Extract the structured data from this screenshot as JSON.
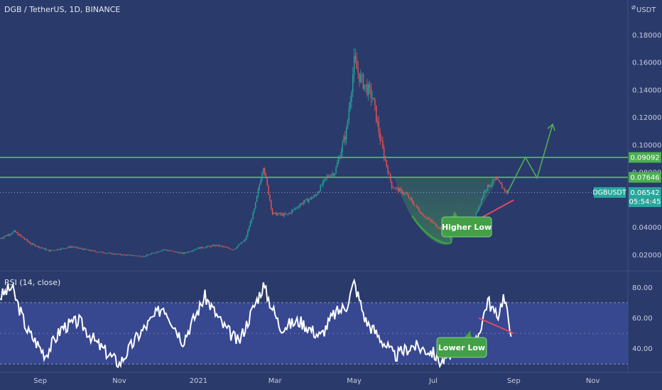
{
  "chart_data": [
    {
      "type": "candlestick",
      "title": "DGB / TetherUS, 1D, BINANCE",
      "currency": "USDT",
      "symbol": "DGBUSDT",
      "last_price": "0.06542",
      "countdown": "05:54:45",
      "y_ticks": [
        "0.18000",
        "0.16000",
        "0.14000",
        "0.12000",
        "0.10000",
        "0.08000",
        "0.06000",
        "0.04000",
        "0.02000"
      ],
      "ylim": [
        0.012,
        0.19
      ],
      "levels": [
        {
          "label": "0.09092",
          "value": 0.09092,
          "color": "#4caf50"
        },
        {
          "label": "0.07646",
          "value": 0.07646,
          "color": "#4caf50"
        }
      ],
      "x_ticks": [
        "Sep",
        "Nov",
        "2021",
        "Mar",
        "May",
        "Jul",
        "Sep",
        "Nov"
      ],
      "x_tick_dates": [
        "2020-09-01",
        "2020-11-01",
        "2021-01-01",
        "2021-03-01",
        "2021-05-01",
        "2021-07-01",
        "2021-09-01",
        "2021-11-01"
      ],
      "price_path": [
        [
          "2020-08-01",
          0.032
        ],
        [
          "2020-08-12",
          0.037
        ],
        [
          "2020-08-25",
          0.028
        ],
        [
          "2020-09-08",
          0.023
        ],
        [
          "2020-09-25",
          0.026
        ],
        [
          "2020-10-10",
          0.023
        ],
        [
          "2020-10-25",
          0.021
        ],
        [
          "2020-11-05",
          0.02
        ],
        [
          "2020-11-20",
          0.019
        ],
        [
          "2020-12-05",
          0.024
        ],
        [
          "2020-12-20",
          0.021
        ],
        [
          "2021-01-01",
          0.025
        ],
        [
          "2021-01-15",
          0.027
        ],
        [
          "2021-01-28",
          0.024
        ],
        [
          "2021-02-06",
          0.031
        ],
        [
          "2021-02-13",
          0.053
        ],
        [
          "2021-02-20",
          0.085
        ],
        [
          "2021-02-27",
          0.05
        ],
        [
          "2021-03-10",
          0.049
        ],
        [
          "2021-03-22",
          0.058
        ],
        [
          "2021-04-01",
          0.063
        ],
        [
          "2021-04-10",
          0.077
        ],
        [
          "2021-04-16",
          0.08
        ],
        [
          "2021-04-25",
          0.11
        ],
        [
          "2021-05-01",
          0.16
        ],
        [
          "2021-05-06",
          0.148
        ],
        [
          "2021-05-15",
          0.135
        ],
        [
          "2021-05-22",
          0.1
        ],
        [
          "2021-05-30",
          0.07
        ],
        [
          "2021-06-10",
          0.064
        ],
        [
          "2021-06-22",
          0.05
        ],
        [
          "2021-07-05",
          0.04
        ],
        [
          "2021-07-20",
          0.038
        ],
        [
          "2021-08-01",
          0.045
        ],
        [
          "2021-08-10",
          0.068
        ],
        [
          "2021-08-18",
          0.075
        ],
        [
          "2021-08-27",
          0.065
        ]
      ],
      "forecast": [
        [
          "2021-08-27",
          0.065
        ],
        [
          "2021-09-10",
          0.091
        ],
        [
          "2021-09-19",
          0.076
        ],
        [
          "2021-10-01",
          0.115
        ]
      ],
      "annotations": [
        "Higher Low"
      ]
    },
    {
      "type": "line",
      "title": "RSI (14, close)",
      "y_ticks": [
        "80.00",
        "60.00",
        "40.00"
      ],
      "ylim": [
        26,
        88
      ],
      "band": [
        30,
        70
      ],
      "midline": 50,
      "values_path": [
        [
          "2020-08-01",
          74
        ],
        [
          "2020-08-10",
          80
        ],
        [
          "2020-08-22",
          52
        ],
        [
          "2020-09-05",
          36
        ],
        [
          "2020-09-18",
          54
        ],
        [
          "2020-10-01",
          58
        ],
        [
          "2020-10-15",
          43
        ],
        [
          "2020-11-01",
          30
        ],
        [
          "2020-11-15",
          48
        ],
        [
          "2020-12-05",
          68
        ],
        [
          "2020-12-20",
          45
        ],
        [
          "2021-01-06",
          74
        ],
        [
          "2021-01-20",
          55
        ],
        [
          "2021-02-01",
          44
        ],
        [
          "2021-02-13",
          68
        ],
        [
          "2021-02-20",
          81
        ],
        [
          "2021-03-05",
          54
        ],
        [
          "2021-03-20",
          58
        ],
        [
          "2021-04-05",
          48
        ],
        [
          "2021-04-15",
          62
        ],
        [
          "2021-04-25",
          68
        ],
        [
          "2021-05-01",
          83
        ],
        [
          "2021-05-10",
          58
        ],
        [
          "2021-05-22",
          46
        ],
        [
          "2021-06-01",
          35
        ],
        [
          "2021-06-15",
          42
        ],
        [
          "2021-06-30",
          38
        ],
        [
          "2021-07-07",
          31
        ],
        [
          "2021-07-20",
          42
        ],
        [
          "2021-08-01",
          38
        ],
        [
          "2021-08-05",
          50
        ],
        [
          "2021-08-12",
          72
        ],
        [
          "2021-08-19",
          60
        ],
        [
          "2021-08-24",
          74
        ],
        [
          "2021-08-30",
          52
        ]
      ],
      "annotations": [
        "Lower Low"
      ]
    }
  ]
}
